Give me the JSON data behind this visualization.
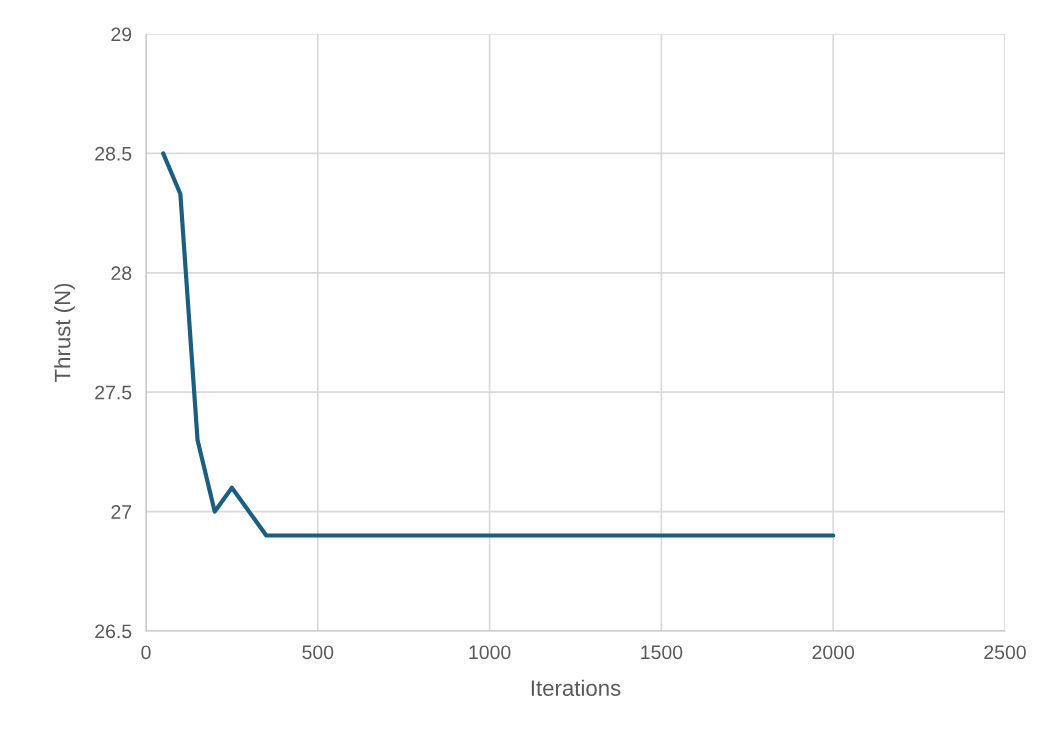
{
  "chart_data": {
    "type": "line",
    "xlabel": "Iterations",
    "ylabel": "Thrust (N)",
    "x": [
      50,
      100,
      150,
      200,
      250,
      300,
      350,
      400,
      500,
      1000,
      1500,
      2000
    ],
    "series": [
      {
        "color": "#1b5e80",
        "values": [
          28.5,
          28.33,
          27.3,
          27.0,
          27.1,
          27.0,
          26.9,
          26.9,
          26.9,
          26.9,
          26.9,
          26.9
        ]
      }
    ],
    "xlim": [
      0,
      2500
    ],
    "xticks": [
      0,
      500,
      1000,
      1500,
      2000,
      2500
    ],
    "ylim": [
      26.5,
      29
    ],
    "yticks": [
      26.5,
      27,
      27.5,
      28,
      28.5,
      29
    ],
    "grid": true,
    "marker": "none",
    "line_style": "solid"
  }
}
